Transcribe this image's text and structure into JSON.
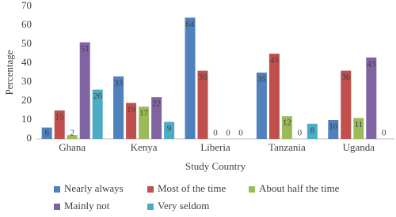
{
  "chart_data": {
    "type": "bar",
    "categories": [
      "Ghana",
      "Kenya",
      "Liberia",
      "Tanzania",
      "Uganda"
    ],
    "series": [
      {
        "name": "Nearly always",
        "color": "#4f81bd",
        "values": [
          6,
          33,
          64,
          35,
          10
        ]
      },
      {
        "name": "Most of the time",
        "color": "#c0504d",
        "values": [
          15,
          19,
          36,
          45,
          36
        ]
      },
      {
        "name": "About half the time",
        "color": "#9bbb59",
        "values": [
          2,
          17,
          0,
          12,
          11
        ]
      },
      {
        "name": "Mainly not",
        "color": "#8064a2",
        "values": [
          51,
          22,
          0,
          0,
          43
        ]
      },
      {
        "name": "Very seldom",
        "color": "#4bacc6",
        "values": [
          26,
          9,
          0,
          8,
          0
        ]
      }
    ],
    "x_label": "Study Country",
    "y_label": "Percentage",
    "ylim": [
      0,
      70
    ],
    "yticks": [
      0,
      10,
      20,
      30,
      40,
      50,
      60,
      70
    ],
    "grid": false,
    "legend": "bottom"
  }
}
